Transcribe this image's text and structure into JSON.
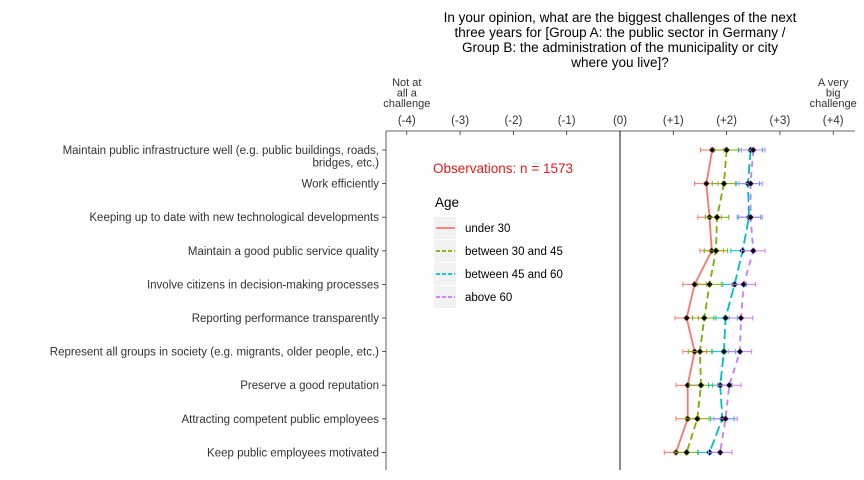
{
  "chart_data": {
    "type": "line",
    "title_lines": [
      "In your opinion, what are the biggest challenges of the next",
      "three years for [Group A: the public sector in Germany /",
      "Group B: the administration of the municipality or city",
      "where you live]?"
    ],
    "x_ticks": [
      {
        "value": -4,
        "label": "(-4)"
      },
      {
        "value": -3,
        "label": "(-3)"
      },
      {
        "value": -2,
        "label": "(-2)"
      },
      {
        "value": -1,
        "label": "(-1)"
      },
      {
        "value": 0,
        "label": "(0)"
      },
      {
        "value": 1,
        "label": "(+1)"
      },
      {
        "value": 2,
        "label": "(+2)"
      },
      {
        "value": 3,
        "label": "(+3)"
      },
      {
        "value": 4,
        "label": "(+4)"
      }
    ],
    "x_range": [
      -4.4,
      4.4
    ],
    "left_end_label": [
      "Not at",
      "all a",
      "challenge"
    ],
    "right_end_label": [
      "A very",
      "big",
      "challenge"
    ],
    "categories": [
      [
        "Maintain public infrastructure well (e.g. public buildings, roads,",
        "bridges, etc.)"
      ],
      [
        "Work efficiently"
      ],
      [
        "Keeping up to date with new technological developments"
      ],
      [
        "Maintain a good public service quality"
      ],
      [
        "Involve citizens in decision-making processes"
      ],
      [
        "Reporting performance transparently"
      ],
      [
        "Represent all groups in society (e.g. migrants, older people, etc.)"
      ],
      [
        "Preserve a good reputation"
      ],
      [
        "Attracting competent public employees"
      ],
      [
        "Keep public employees motivated"
      ]
    ],
    "annotation": "Observations: n = 1573",
    "annotation_color": "#e41a1c",
    "legend_title": "Age",
    "legend_position": "inside-left",
    "error_half_width": 0.22,
    "series": [
      {
        "name": "under 30",
        "color": "#f8766d",
        "dash": "",
        "values": [
          1.73,
          1.62,
          1.68,
          1.72,
          1.4,
          1.25,
          1.4,
          1.27,
          1.27,
          1.05
        ]
      },
      {
        "name": "between 30 and 45",
        "color": "#7cae00",
        "dash": "7,4",
        "values": [
          2.0,
          1.95,
          1.82,
          1.8,
          1.68,
          1.58,
          1.5,
          1.52,
          1.45,
          1.25
        ]
      },
      {
        "name": "between 45 and 60",
        "color": "#00bfc4",
        "dash": "10,4",
        "values": [
          2.45,
          2.4,
          2.42,
          2.3,
          2.15,
          1.98,
          1.95,
          1.88,
          1.92,
          1.68
        ]
      },
      {
        "name": "above 60",
        "color": "#c77cff",
        "dash": "6,5",
        "values": [
          2.5,
          2.45,
          2.45,
          2.5,
          2.32,
          2.27,
          2.25,
          2.05,
          1.98,
          1.88
        ]
      }
    ]
  }
}
